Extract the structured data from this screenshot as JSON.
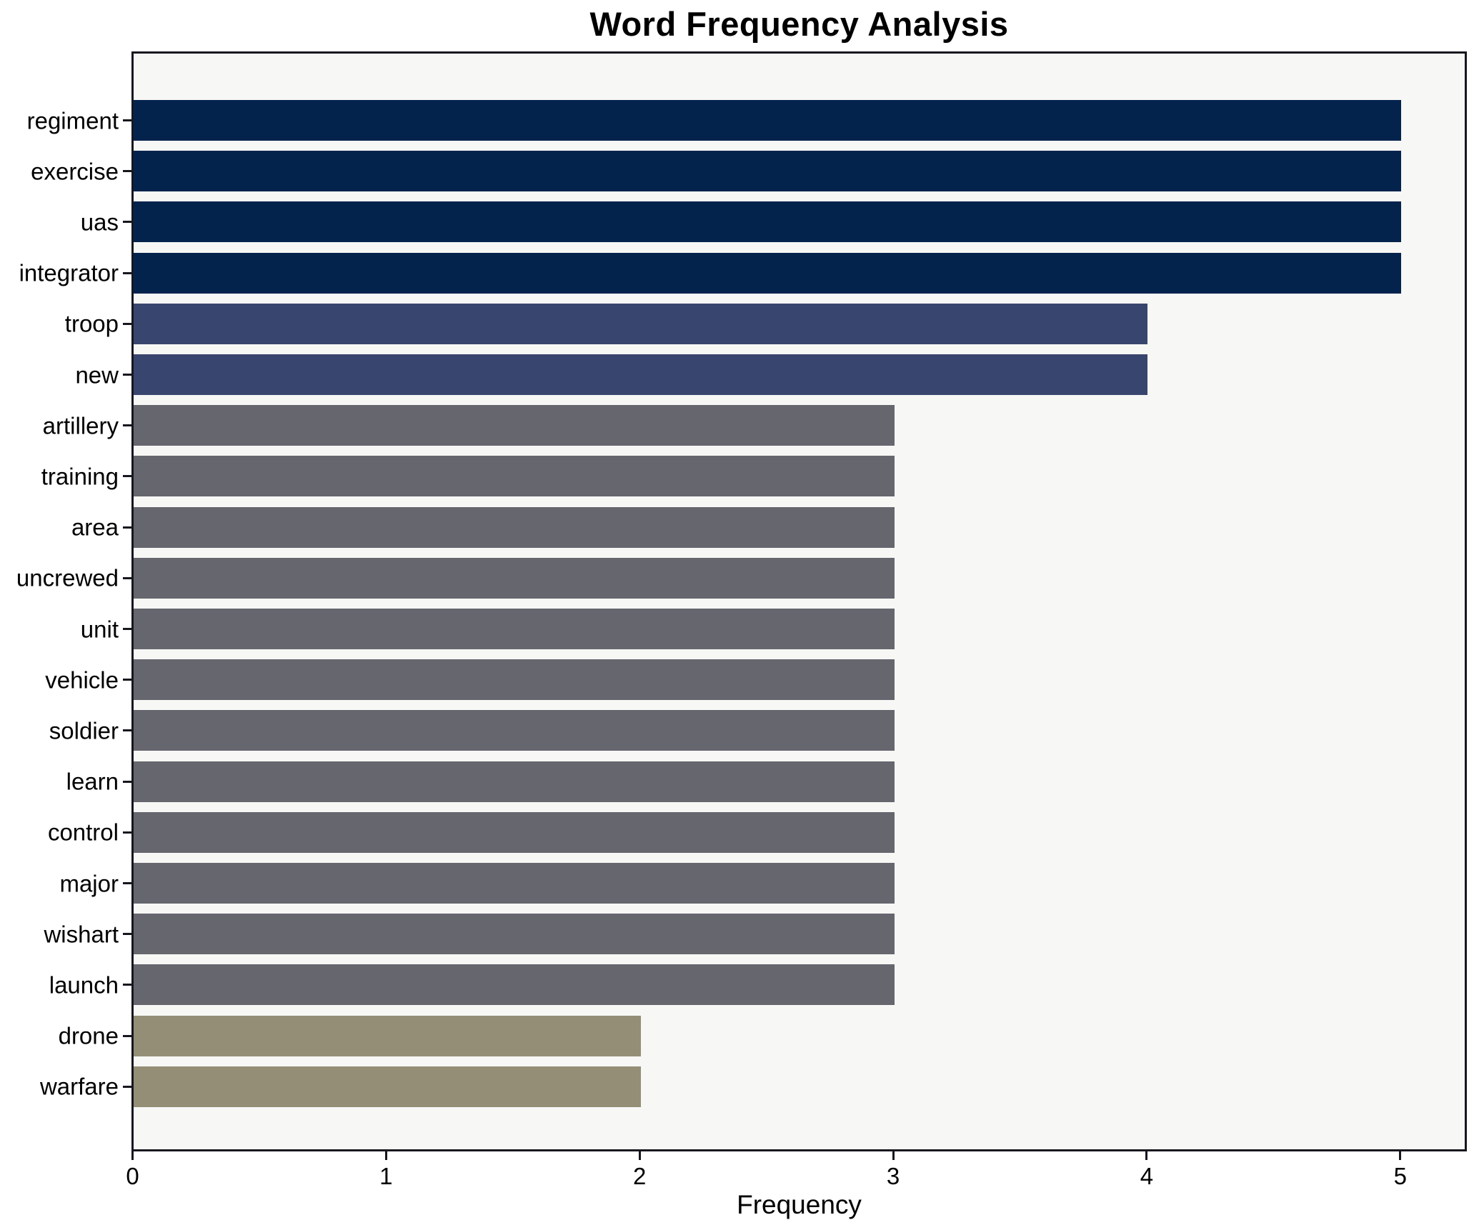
{
  "chart_data": {
    "type": "bar",
    "orientation": "horizontal",
    "title": "Word Frequency Analysis",
    "xlabel": "Frequency",
    "ylabel": "",
    "categories": [
      "regiment",
      "exercise",
      "uas",
      "integrator",
      "troop",
      "new",
      "artillery",
      "training",
      "area",
      "uncrewed",
      "unit",
      "vehicle",
      "soldier",
      "learn",
      "control",
      "major",
      "wishart",
      "launch",
      "drone",
      "warfare"
    ],
    "values": [
      5,
      5,
      5,
      5,
      4,
      4,
      3,
      3,
      3,
      3,
      3,
      3,
      3,
      3,
      3,
      3,
      3,
      3,
      2,
      2
    ],
    "bar_colors": [
      "#03234d",
      "#03234d",
      "#03234d",
      "#03234d",
      "#38466f",
      "#38466f",
      "#65666e",
      "#65666e",
      "#65666e",
      "#65666e",
      "#65666e",
      "#65666e",
      "#65666e",
      "#65666e",
      "#65666e",
      "#65666e",
      "#65666e",
      "#65666e",
      "#948e76",
      "#948e76"
    ],
    "x_ticks": [
      0,
      1,
      2,
      3,
      4,
      5
    ],
    "x_tick_labels": [
      "0",
      "1",
      "2",
      "3",
      "4",
      "5"
    ],
    "xlim": [
      0,
      5.25
    ],
    "grid": false,
    "legend_position": "none",
    "colors": {
      "value_5": "#03234d",
      "value_4": "#38466f",
      "value_3": "#65666e",
      "value_2": "#948e76",
      "plot_background": "#f7f7f5",
      "figure_background": "#ffffff",
      "spine": "#17171f",
      "text": "#000000"
    }
  }
}
